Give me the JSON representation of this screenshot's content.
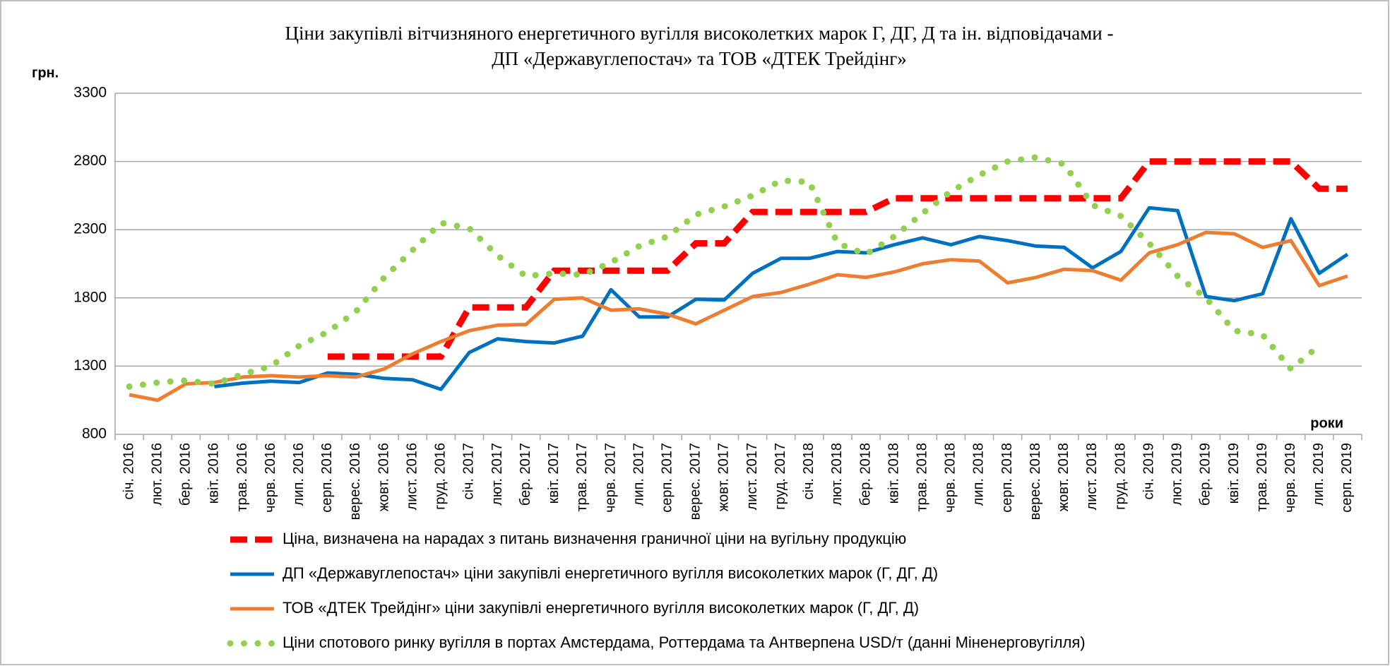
{
  "chart_data": {
    "type": "line",
    "title": [
      "Ціни закупівлі вітчизняного енергетичного вугілля високолетких марок Г, ДГ, Д та ін. відповідачами -",
      "ДП «Державуглепостач» та ТОВ «ДТЕК Трейдінг»"
    ],
    "y_label": "грн.",
    "x_label": "роки",
    "categories": [
      "січ. 2016",
      "лют. 2016",
      "бер. 2016",
      "квіт. 2016",
      "трав. 2016",
      "черв. 2016",
      "лип. 2016",
      "серп. 2016",
      "верес. 2016",
      "жовт. 2016",
      "лист. 2016",
      "груд. 2016",
      "січ. 2017",
      "лют. 2017",
      "бер. 2017",
      "квіт. 2017",
      "трав. 2017",
      "черв. 2017",
      "лип. 2017",
      "серп. 2017",
      "верес. 2017",
      "жовт. 2017",
      "лист. 2017",
      "груд. 2017",
      "січ. 2018",
      "лют. 2018",
      "бер. 2018",
      "квіт. 2018",
      "трав. 2018",
      "черв. 2018",
      "лип. 2018",
      "серп. 2018",
      "верес. 2018",
      "жовт. 2018",
      "лист. 2018",
      "груд. 2018",
      "січ. 2019",
      "лют. 2019",
      "бер. 2019",
      "квіт. 2019",
      "трав. 2019",
      "черв. 2019",
      "лип. 2019",
      "серп. 2019"
    ],
    "series": [
      {
        "name": "Ціна, визначена на нарадах з питань визначення граничної ціни на вугільну продукцію",
        "color": "#ff0000",
        "style": "dashed",
        "values": [
          null,
          null,
          null,
          null,
          null,
          null,
          null,
          1370,
          1370,
          1370,
          1370,
          1370,
          1730,
          1730,
          1730,
          2000,
          2000,
          2000,
          2000,
          2000,
          2200,
          2200,
          2430,
          2430,
          2430,
          2430,
          2430,
          2530,
          2530,
          2530,
          2530,
          2530,
          2530,
          2530,
          2530,
          2530,
          2800,
          2800,
          2800,
          2800,
          2800,
          2800,
          2600,
          2600
        ]
      },
      {
        "name": "ДП «Державуглепостач» ціни закупівлі енергетичного вугілля високолетких марок (Г, ДГ, Д)",
        "color": "#0070c0",
        "style": "solid",
        "values": [
          null,
          null,
          null,
          1150,
          1175,
          1190,
          1180,
          1250,
          1240,
          1210,
          1200,
          1130,
          1400,
          1500,
          1480,
          1470,
          1520,
          1860,
          1660,
          1660,
          1790,
          1785,
          1980,
          2090,
          2090,
          2140,
          2130,
          2190,
          2240,
          2190,
          2250,
          2220,
          2180,
          2170,
          2020,
          2140,
          2460,
          2440,
          1810,
          1780,
          1830,
          2380,
          1980,
          2120
        ]
      },
      {
        "name": "ТОВ «ДТЕК Трейдінг» ціни закупівлі енергетичного вугілля високолетких марок (Г, ДГ, Д)",
        "color": "#ed7d31",
        "style": "solid",
        "values": [
          1090,
          1050,
          1170,
          1180,
          1220,
          1230,
          1220,
          1230,
          1220,
          1280,
          1390,
          1480,
          1560,
          1600,
          1605,
          1790,
          1800,
          1710,
          1720,
          1680,
          1610,
          1710,
          1810,
          1840,
          1900,
          1970,
          1950,
          1990,
          2050,
          2080,
          2070,
          1910,
          1950,
          2010,
          2000,
          1930,
          2130,
          2190,
          2280,
          2270,
          2170,
          2220,
          1890,
          1960
        ]
      },
      {
        "name": "Ціни спотового ринку вугілля в портах Амстердама, Роттердама та Антверпена USD/т (данні Міненерговугілля)",
        "color": "#92d050",
        "style": "dotted",
        "values": [
          1150,
          1180,
          1195,
          1170,
          1240,
          1300,
          1450,
          1550,
          1700,
          1950,
          2150,
          2350,
          2310,
          2110,
          1960,
          1980,
          1970,
          2060,
          2180,
          2250,
          2410,
          2470,
          2550,
          2660,
          2650,
          2200,
          2120,
          2250,
          2420,
          2580,
          2700,
          2800,
          2830,
          2780,
          2480,
          2400,
          2200,
          1960,
          1800,
          1560,
          1530,
          1280,
          1450,
          null
        ]
      }
    ],
    "ylim": [
      800,
      3300
    ],
    "yticks": [
      800,
      1300,
      1800,
      2300,
      2800,
      3300
    ],
    "grid": true,
    "legend": "bottom"
  }
}
